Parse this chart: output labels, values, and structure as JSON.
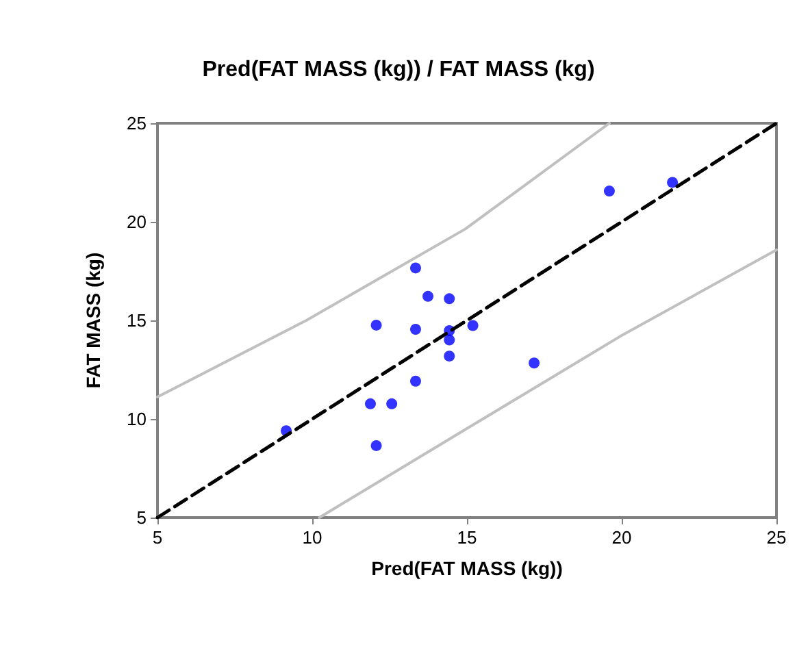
{
  "chart_data": {
    "type": "scatter",
    "title": "Pred(FAT MASS (kg)) / FAT MASS (kg)",
    "xlabel": "Pred(FAT MASS (kg))",
    "ylabel": "FAT MASS (kg)",
    "xlim": [
      5,
      25
    ],
    "ylim": [
      5,
      25
    ],
    "xticks": [
      5,
      10,
      15,
      20,
      25
    ],
    "yticks": [
      5,
      10,
      15,
      20,
      25
    ],
    "grid": false,
    "series": [
      {
        "type": "line",
        "color": "#c0c0c0",
        "marker": "none",
        "line_style": "solid",
        "x": [
          5,
          9.81,
          14.95,
          19.6
        ],
        "values": [
          11.12,
          15.0,
          19.64,
          25
        ]
      },
      {
        "type": "line",
        "color": "#c0c0c0",
        "marker": "none",
        "line_style": "solid",
        "x": [
          10.23,
          14.95,
          19.94,
          25
        ],
        "values": [
          5,
          9.47,
          14.18,
          18.58
        ]
      },
      {
        "type": "line",
        "color": "#000000",
        "marker": "none",
        "line_style": "dashed",
        "x": [
          5,
          25
        ],
        "values": [
          5,
          25
        ]
      },
      {
        "color": "#0000ff",
        "marker": "circle",
        "x": [
          9.16,
          12.07,
          11.88,
          12.57,
          12.07,
          13.34,
          13.34,
          13.34,
          13.74,
          14.43,
          14.43,
          14.43,
          14.43,
          15.19,
          17.17,
          19.6,
          21.64
        ],
        "values": [
          9.4,
          8.65,
          10.77,
          10.77,
          14.76,
          17.66,
          14.55,
          11.92,
          16.22,
          16.1,
          14.48,
          14.01,
          13.19,
          14.74,
          12.84,
          21.56,
          22.0
        ]
      }
    ]
  }
}
